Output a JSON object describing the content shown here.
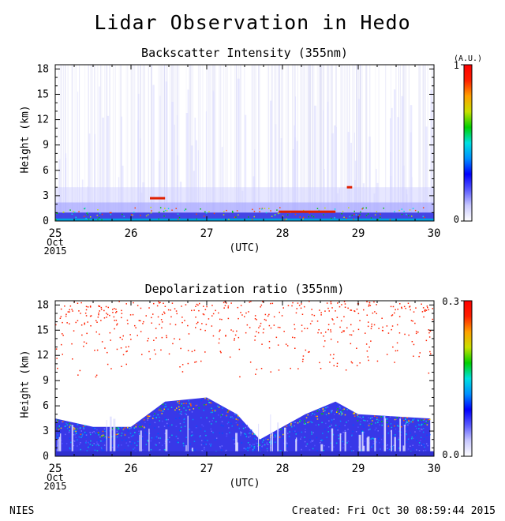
{
  "title": "Lidar Observation in Hedo",
  "footer": {
    "left": "NIES",
    "right": "Created: Fri Oct 30 08:59:44 2015"
  },
  "chart_data": [
    {
      "type": "heatmap",
      "title": "Backscatter Intensity (355nm)",
      "ylabel": "Height (km)",
      "xlabel": "(UTC)",
      "x_ticks": [
        "25",
        "26",
        "27",
        "28",
        "29",
        "30"
      ],
      "x_tick_sub": [
        "Oct",
        "2015"
      ],
      "y_ticks": [
        "0",
        "3",
        "6",
        "9",
        "12",
        "15",
        "18"
      ],
      "xlim": [
        25,
        30
      ],
      "ylim": [
        0,
        18.5
      ],
      "colorbar": {
        "unit": "(A.U.)",
        "min_label": "0",
        "max_label": "1",
        "min": 0,
        "max": 1
      },
      "features": {
        "boundary_layer_top_km": 1.0,
        "cloud_layers": [
          {
            "start": 26.25,
            "end": 26.45,
            "height_km": 2.7
          },
          {
            "start": 27.95,
            "end": 28.7,
            "height_km": 1.1
          },
          {
            "start": 28.85,
            "end": 28.92,
            "height_km": 4.0
          }
        ]
      }
    },
    {
      "type": "heatmap",
      "title": "Depolarization ratio (355nm)",
      "ylabel": "Height (km)",
      "xlabel": "(UTC)",
      "x_ticks": [
        "25",
        "26",
        "27",
        "28",
        "29",
        "30"
      ],
      "x_tick_sub": [
        "Oct",
        "2015"
      ],
      "y_ticks": [
        "0",
        "3",
        "6",
        "9",
        "12",
        "15",
        "18"
      ],
      "xlim": [
        25,
        30
      ],
      "ylim": [
        0,
        18.5
      ],
      "colorbar": {
        "min_label": "0.0",
        "max_label": "0.3",
        "min": 0,
        "max": 0.3
      },
      "features": {
        "layer_tops_km": [
          {
            "x": 25.0,
            "top": 4.5
          },
          {
            "x": 25.5,
            "top": 3.5
          },
          {
            "x": 26.0,
            "top": 3.5
          },
          {
            "x": 26.45,
            "top": 6.5
          },
          {
            "x": 27.0,
            "top": 7.0
          },
          {
            "x": 27.4,
            "top": 5.0
          },
          {
            "x": 27.7,
            "top": 2.0
          },
          {
            "x": 28.0,
            "top": 3.5
          },
          {
            "x": 28.3,
            "top": 5.0
          },
          {
            "x": 28.7,
            "top": 6.5
          },
          {
            "x": 29.0,
            "top": 5.0
          },
          {
            "x": 29.95,
            "top": 4.5
          }
        ],
        "upper_scatter_range_km": [
          9,
          18.5
        ]
      }
    }
  ]
}
